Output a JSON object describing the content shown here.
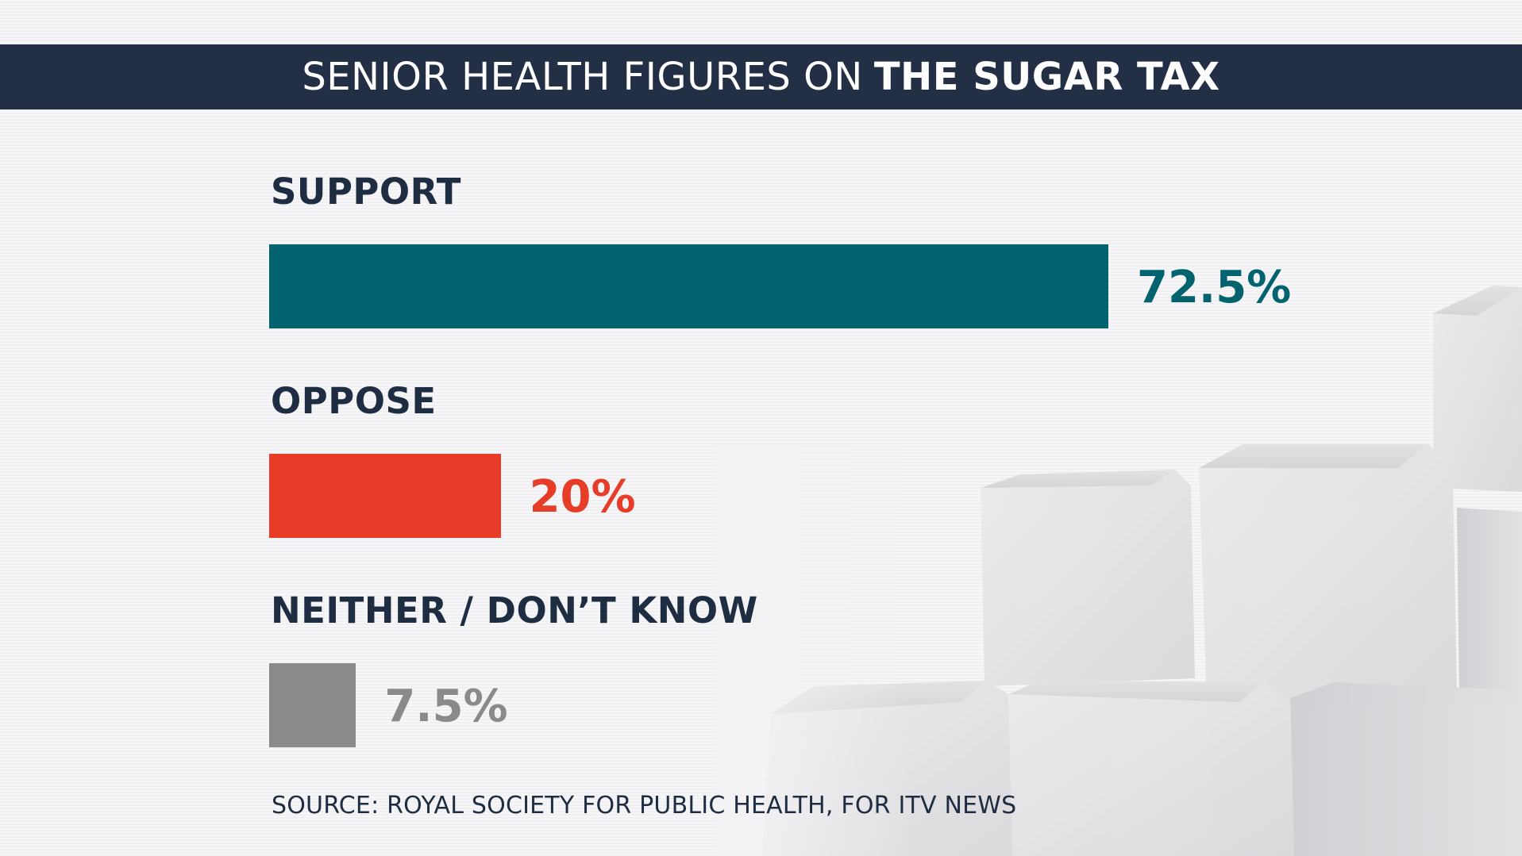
{
  "title": {
    "light": "SENIOR HEALTH FIGURES ON",
    "bold": "THE SUGAR TAX"
  },
  "chart_data": {
    "type": "bar",
    "orientation": "horizontal",
    "title": "SENIOR HEALTH FIGURES ON THE SUGAR TAX",
    "categories": [
      "SUPPORT",
      "OPPOSE",
      "NEITHER / DON’T KNOW"
    ],
    "values": [
      72.5,
      20,
      7.5
    ],
    "value_labels": [
      "72.5%",
      "20%",
      "7.5%"
    ],
    "unit": "%",
    "colors": [
      "#01636e",
      "#e63c28",
      "#8a898c"
    ],
    "xlim": [
      0,
      100
    ],
    "source": "SOURCE: ROYAL SOCIETY FOR PUBLIC HEALTH, FOR ITV NEWS"
  }
}
